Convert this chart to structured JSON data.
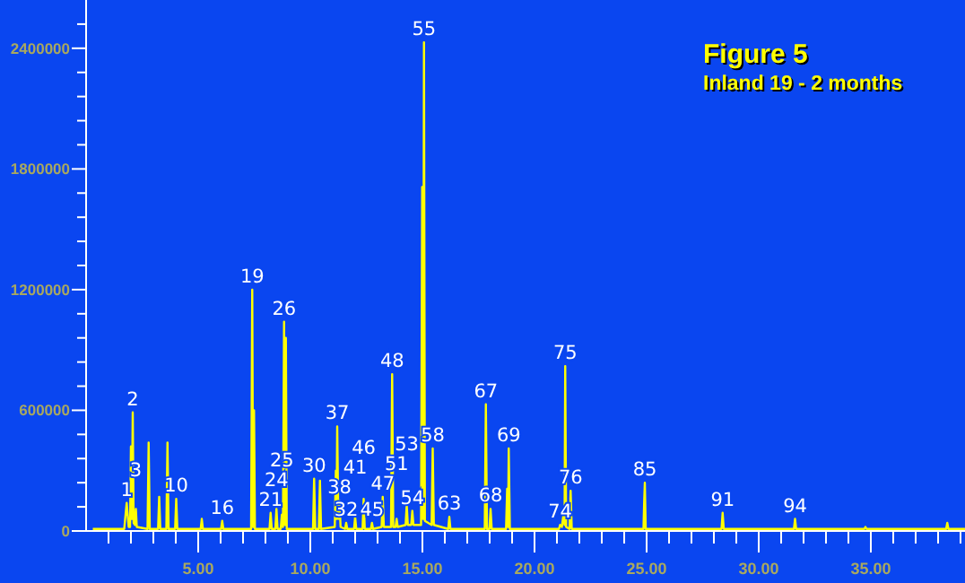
{
  "chart_data": {
    "type": "line",
    "title": "Figure 5",
    "subtitle": "Inland 19 - 2 months",
    "x": [
      0.3,
      1.7,
      1.81,
      1.9,
      1.96,
      2.0,
      2.04,
      2.08,
      2.12,
      2.18,
      2.22,
      2.26,
      2.74,
      2.79,
      2.84,
      3.21,
      3.26,
      3.31,
      3.58,
      3.63,
      3.68,
      3.97,
      4.02,
      4.07,
      5.11,
      5.16,
      5.21,
      6.02,
      6.07,
      6.12,
      7.36,
      7.41,
      7.45,
      7.49,
      7.53,
      8.18,
      8.23,
      8.28,
      8.44,
      8.49,
      8.54,
      8.68,
      8.73,
      8.78,
      8.83,
      8.87,
      8.91,
      8.95,
      10.12,
      10.17,
      10.22,
      10.38,
      10.43,
      10.48,
      11.09,
      11.14,
      11.17,
      11.2,
      11.25,
      11.3,
      11.35,
      11.55,
      11.6,
      11.65,
      11.95,
      12.0,
      12.05,
      12.33,
      12.38,
      12.43,
      12.7,
      12.75,
      12.8,
      13.18,
      13.23,
      13.28,
      13.6,
      13.65,
      13.7,
      13.8,
      13.85,
      13.9,
      14.25,
      14.3,
      14.35,
      14.5,
      14.55,
      14.6,
      14.94,
      14.99,
      15.03,
      15.07,
      15.11,
      15.41,
      15.46,
      15.51,
      16.15,
      16.2,
      16.25,
      17.78,
      17.83,
      17.88,
      17.99,
      18.04,
      18.09,
      18.73,
      18.78,
      18.82,
      18.85,
      18.9,
      21.09,
      21.14,
      21.22,
      21.3,
      21.34,
      21.37,
      21.41,
      21.56,
      21.61,
      21.66,
      24.86,
      24.89,
      24.92,
      24.96,
      28.34,
      28.39,
      28.44,
      31.57,
      31.62,
      31.67,
      34.71,
      34.76,
      34.81,
      38.36,
      38.41,
      38.46,
      39.2
    ],
    "series": [
      {
        "color": "#ffff00",
        "values": [
          10000,
          10000,
          140000,
          20000,
          20000,
          420000,
          60000,
          590000,
          40000,
          30000,
          110000,
          20000,
          10000,
          440000,
          10000,
          10000,
          170000,
          10000,
          10000,
          440000,
          10000,
          10000,
          160000,
          10000,
          10000,
          60000,
          10000,
          10000,
          50000,
          10000,
          10000,
          1200000,
          20000,
          600000,
          10000,
          10000,
          90000,
          10000,
          10000,
          110000,
          10000,
          10000,
          80000,
          20000,
          1040000,
          30000,
          960000,
          10000,
          10000,
          260000,
          10000,
          10000,
          250000,
          10000,
          20000,
          300000,
          60000,
          520000,
          60000,
          150000,
          20000,
          10000,
          40000,
          10000,
          10000,
          70000,
          10000,
          10000,
          160000,
          10000,
          10000,
          40000,
          10000,
          20000,
          170000,
          20000,
          20000,
          780000,
          20000,
          20000,
          60000,
          20000,
          30000,
          130000,
          30000,
          30000,
          100000,
          30000,
          30000,
          1710000,
          60000,
          2430000,
          50000,
          30000,
          410000,
          30000,
          10000,
          70000,
          10000,
          10000,
          630000,
          10000,
          10000,
          110000,
          10000,
          10000,
          210000,
          20000,
          410000,
          10000,
          10000,
          30000,
          20000,
          90000,
          30000,
          820000,
          20000,
          10000,
          200000,
          10000,
          10000,
          140000,
          240000,
          10000,
          10000,
          90000,
          10000,
          10000,
          60000,
          10000,
          10000,
          20000,
          10000,
          10000,
          40000,
          10000,
          10000
        ]
      }
    ],
    "xlim": [
      0,
      39.2
    ],
    "xticks": [
      {
        "value": 1,
        "label": null
      },
      {
        "value": 2,
        "label": null
      },
      {
        "value": 3,
        "label": null
      },
      {
        "value": 4,
        "label": null
      },
      {
        "value": 5,
        "label": "5.00"
      },
      {
        "value": 6,
        "label": null
      },
      {
        "value": 7,
        "label": null
      },
      {
        "value": 8,
        "label": null
      },
      {
        "value": 9,
        "label": null
      },
      {
        "value": 10,
        "label": "10.00"
      },
      {
        "value": 11,
        "label": null
      },
      {
        "value": 12,
        "label": null
      },
      {
        "value": 13,
        "label": null
      },
      {
        "value": 14,
        "label": null
      },
      {
        "value": 15,
        "label": "15.00"
      },
      {
        "value": 16,
        "label": null
      },
      {
        "value": 17,
        "label": null
      },
      {
        "value": 18,
        "label": null
      },
      {
        "value": 19,
        "label": null
      },
      {
        "value": 20,
        "label": "20.00"
      },
      {
        "value": 21,
        "label": null
      },
      {
        "value": 22,
        "label": null
      },
      {
        "value": 23,
        "label": null
      },
      {
        "value": 24,
        "label": null
      },
      {
        "value": 25,
        "label": "25.00"
      },
      {
        "value": 26,
        "label": null
      },
      {
        "value": 27,
        "label": null
      },
      {
        "value": 28,
        "label": null
      },
      {
        "value": 29,
        "label": null
      },
      {
        "value": 30,
        "label": "30.00"
      },
      {
        "value": 31,
        "label": null
      },
      {
        "value": 32,
        "label": null
      },
      {
        "value": 33,
        "label": null
      },
      {
        "value": 34,
        "label": null
      },
      {
        "value": 35,
        "label": "35.00"
      },
      {
        "value": 36,
        "label": null
      },
      {
        "value": 37,
        "label": null
      },
      {
        "value": 38,
        "label": null
      },
      {
        "value": 39,
        "label": null
      }
    ],
    "ylim": [
      0,
      2640000
    ],
    "yticks": [
      0,
      {
        "value": 120000,
        "label": null
      },
      {
        "value": 240000,
        "label": null
      },
      {
        "value": 360000,
        "label": null
      },
      {
        "value": 480000,
        "label": null
      },
      600000,
      {
        "value": 720000,
        "label": null
      },
      {
        "value": 840000,
        "label": null
      },
      {
        "value": 960000,
        "label": null
      },
      {
        "value": 1080000,
        "label": null
      },
      1200000,
      {
        "value": 1320000,
        "label": null
      },
      {
        "value": 1440000,
        "label": null
      },
      {
        "value": 1560000,
        "label": null
      },
      {
        "value": 1680000,
        "label": null
      },
      1800000,
      {
        "value": 1920000,
        "label": null
      },
      {
        "value": 2040000,
        "label": null
      },
      {
        "value": 2160000,
        "label": null
      },
      {
        "value": 2280000,
        "label": null
      },
      2400000,
      {
        "value": 2520000,
        "label": null
      }
    ],
    "grid": false,
    "legend": false,
    "marker": "none",
    "line_style": "solid",
    "annotations": [
      {
        "text": "1",
        "x": 1.81,
        "y": 140000
      },
      {
        "text": "2",
        "x": 2.08,
        "y": 590000
      },
      {
        "text": "3",
        "x": 2.22,
        "y": 110000
      },
      {
        "text": "10",
        "x": 4.02,
        "y": 160000
      },
      {
        "text": "16",
        "x": 6.07,
        "y": 50000
      },
      {
        "text": "19",
        "x": 7.41,
        "y": 1200000
      },
      {
        "text": "21",
        "x": 8.23,
        "y": 90000
      },
      {
        "text": "24",
        "x": 8.49,
        "y": 110000
      },
      {
        "text": "25",
        "x": 8.73,
        "y": 80000
      },
      {
        "text": "26",
        "x": 8.83,
        "y": 1040000
      },
      {
        "text": "30",
        "x": 10.17,
        "y": 260000
      },
      {
        "text": "37",
        "x": 11.2,
        "y": 520000
      },
      {
        "text": "38",
        "x": 11.3,
        "y": 150000
      },
      {
        "text": "32",
        "x": 11.6,
        "y": 40000
      },
      {
        "text": "41",
        "x": 12.0,
        "y": 70000
      },
      {
        "text": "46",
        "x": 12.38,
        "y": 160000
      },
      {
        "text": "45",
        "x": 12.75,
        "y": 40000
      },
      {
        "text": "47",
        "x": 13.23,
        "y": 170000
      },
      {
        "text": "48",
        "x": 13.65,
        "y": 780000
      },
      {
        "text": "51",
        "x": 13.85,
        "y": 60000
      },
      {
        "text": "53",
        "x": 14.3,
        "y": 130000
      },
      {
        "text": "54",
        "x": 14.55,
        "y": 100000
      },
      {
        "text": "55",
        "x": 15.07,
        "y": 2430000
      },
      {
        "text": "58",
        "x": 15.46,
        "y": 410000
      },
      {
        "text": "63",
        "x": 16.2,
        "y": 70000
      },
      {
        "text": "67",
        "x": 17.83,
        "y": 630000
      },
      {
        "text": "68",
        "x": 18.04,
        "y": 110000
      },
      {
        "text": "69",
        "x": 18.85,
        "y": 410000
      },
      {
        "text": "74",
        "x": 21.14,
        "y": 30000
      },
      {
        "text": "75",
        "x": 21.37,
        "y": 820000
      },
      {
        "text": "76",
        "x": 21.61,
        "y": 200000
      },
      {
        "text": "85",
        "x": 24.92,
        "y": 240000
      },
      {
        "text": "91",
        "x": 28.39,
        "y": 90000
      },
      {
        "text": "94",
        "x": 31.62,
        "y": 60000
      }
    ]
  }
}
